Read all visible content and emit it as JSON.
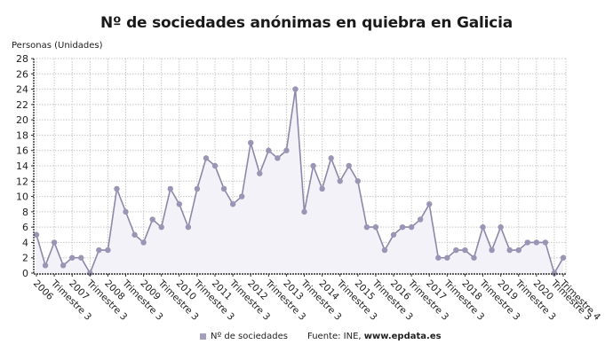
{
  "title": "Nº de sociedades anónimas en quiebra en Galicia",
  "y_axis_title": "Personas (Unidades)",
  "legend": {
    "label": "Nº de sociedades",
    "color": "#a59fbf"
  },
  "source_prefix": "Fuente: INE, ",
  "source_site": "www.epdata.es",
  "colors": {
    "line": "#8e88a8",
    "marker": "#9b95b5",
    "fill": "#f3f2f8",
    "grid": "#c8c8c8",
    "axis": "#333333"
  },
  "chart_data": {
    "type": "line",
    "title": "Nº de sociedades anónimas en quiebra en Galicia",
    "xlabel": "",
    "ylabel": "Personas (Unidades)",
    "ylim": [
      0,
      28
    ],
    "yticks": [
      0,
      2,
      4,
      6,
      8,
      10,
      12,
      14,
      16,
      18,
      20,
      22,
      24,
      26,
      28
    ],
    "grid": true,
    "legend_position": "bottom",
    "x_tick_labels": [
      "2006",
      "Trimestre 3",
      "2007",
      "Trimestre 3",
      "2008",
      "Trimestre 3",
      "2009",
      "Trimestre 3",
      "2010",
      "Trimestre 3",
      "2011",
      "Trimestre 3",
      "2012",
      "Trimestre 3",
      "2013",
      "Trimestre 3",
      "2014",
      "Trimestre 3",
      "2015",
      "Trimestre 3",
      "2016",
      "Trimestre 3",
      "2017",
      "Trimestre 3",
      "2018",
      "Trimestre 3",
      "2019",
      "Trimestre 3",
      "2020",
      "Trimestre 3",
      "Trimestre 4"
    ],
    "x": [
      "2006 T1",
      "2006 T2",
      "2006 T3",
      "2006 T4",
      "2007 T1",
      "2007 T2",
      "2007 T3",
      "2007 T4",
      "2008 T1",
      "2008 T2",
      "2008 T3",
      "2008 T4",
      "2009 T1",
      "2009 T2",
      "2009 T3",
      "2009 T4",
      "2010 T1",
      "2010 T2",
      "2010 T3",
      "2010 T4",
      "2011 T1",
      "2011 T2",
      "2011 T3",
      "2011 T4",
      "2012 T1",
      "2012 T2",
      "2012 T3",
      "2012 T4",
      "2013 T1",
      "2013 T2",
      "2013 T3",
      "2013 T4",
      "2014 T1",
      "2014 T2",
      "2014 T3",
      "2014 T4",
      "2015 T1",
      "2015 T2",
      "2015 T3",
      "2015 T4",
      "2016 T1",
      "2016 T2",
      "2016 T3",
      "2016 T4",
      "2017 T1",
      "2017 T2",
      "2017 T3",
      "2017 T4",
      "2018 T1",
      "2018 T2",
      "2018 T3",
      "2018 T4",
      "2019 T1",
      "2019 T2",
      "2019 T3",
      "2019 T4",
      "2020 T1",
      "2020 T2",
      "2020 T3",
      "2020 T4"
    ],
    "series": [
      {
        "name": "Nº de sociedades",
        "values": [
          5,
          1,
          4,
          1,
          2,
          2,
          0,
          3,
          3,
          11,
          8,
          5,
          4,
          7,
          6,
          11,
          9,
          6,
          11,
          15,
          14,
          11,
          9,
          10,
          17,
          13,
          16,
          15,
          16,
          24,
          8,
          14,
          11,
          15,
          12,
          14,
          12,
          6,
          6,
          3,
          5,
          6,
          6,
          7,
          9,
          2,
          2,
          3,
          3,
          2,
          6,
          3,
          6,
          3,
          3,
          4,
          4,
          4,
          0,
          2
        ]
      }
    ]
  }
}
